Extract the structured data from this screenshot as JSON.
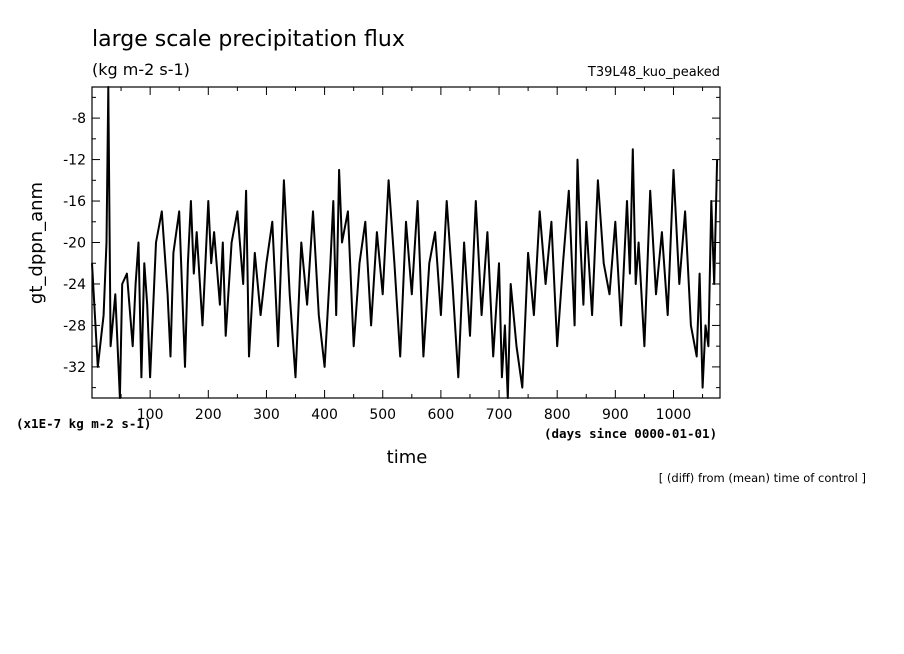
{
  "chart_data": {
    "type": "line",
    "title": "large scale precipitation flux",
    "units": "(kg m-2 s-1)",
    "experiment": "T39L48_kuo_peaked",
    "xlabel": "time",
    "xunits": "(days since 0000-01-01)",
    "ylabel": "gt_dppn_anm",
    "yunits": "(x1E-7 kg m-2 s-1)",
    "note": "[ (diff) from (mean) time of control ]",
    "xlim": [
      0,
      1080
    ],
    "ylim": [
      -35,
      -5
    ],
    "xticks": [
      100,
      200,
      300,
      400,
      500,
      600,
      700,
      800,
      900,
      1000
    ],
    "xtick_labels": [
      "100",
      "200",
      "300",
      "400",
      "500",
      "600",
      "700",
      "800",
      "900",
      "1000"
    ],
    "yticks": [
      -32,
      -28,
      -24,
      -20,
      -16,
      -12,
      -8
    ],
    "ytick_labels": [
      "-32",
      "-28",
      "-24",
      "-20",
      "-16",
      "-12",
      "-8"
    ],
    "grid": false,
    "legend": "none",
    "color": "#000000",
    "series": [
      {
        "x": [
          0,
          10,
          20,
          25,
          28,
          32,
          40,
          48,
          52,
          60,
          70,
          75,
          80,
          85,
          90,
          95,
          100,
          110,
          120,
          130,
          135,
          140,
          150,
          160,
          165,
          170,
          175,
          180,
          190,
          200,
          205,
          210,
          220,
          225,
          230,
          240,
          250,
          260,
          265,
          270,
          280,
          290,
          300,
          310,
          320,
          330,
          340,
          350,
          360,
          370,
          380,
          390,
          400,
          410,
          415,
          420,
          425,
          430,
          440,
          450,
          460,
          470,
          480,
          490,
          500,
          510,
          520,
          530,
          540,
          550,
          560,
          570,
          580,
          590,
          600,
          610,
          620,
          630,
          640,
          650,
          660,
          670,
          680,
          690,
          700,
          705,
          710,
          715,
          720,
          730,
          740,
          750,
          760,
          770,
          780,
          790,
          800,
          810,
          820,
          830,
          835,
          840,
          845,
          850,
          860,
          870,
          880,
          890,
          900,
          910,
          920,
          925,
          930,
          935,
          940,
          950,
          960,
          970,
          980,
          990,
          1000,
          1010,
          1020,
          1030,
          1040,
          1045,
          1050,
          1055,
          1060,
          1065,
          1070,
          1075
        ],
        "y": [
          -22,
          -32,
          -27,
          -20,
          -5,
          -30,
          -25,
          -35,
          -24,
          -23,
          -30,
          -24,
          -20,
          -33,
          -22,
          -26,
          -33,
          -20,
          -17,
          -25,
          -31,
          -21,
          -17,
          -32,
          -22,
          -16,
          -23,
          -19,
          -28,
          -16,
          -22,
          -19,
          -26,
          -20,
          -29,
          -20,
          -17,
          -24,
          -15,
          -31,
          -21,
          -27,
          -22,
          -18,
          -30,
          -14,
          -25,
          -33,
          -20,
          -26,
          -17,
          -27,
          -32,
          -22,
          -16,
          -27,
          -13,
          -20,
          -17,
          -30,
          -22,
          -18,
          -28,
          -19,
          -25,
          -14,
          -22,
          -31,
          -18,
          -25,
          -16,
          -31,
          -22,
          -19,
          -27,
          -16,
          -24,
          -33,
          -20,
          -29,
          -16,
          -27,
          -19,
          -31,
          -22,
          -33,
          -28,
          -35,
          -24,
          -30,
          -34,
          -21,
          -27,
          -17,
          -24,
          -18,
          -30,
          -22,
          -15,
          -28,
          -12,
          -20,
          -26,
          -18,
          -27,
          -14,
          -22,
          -25,
          -18,
          -28,
          -16,
          -23,
          -11,
          -24,
          -20,
          -30,
          -15,
          -25,
          -19,
          -27,
          -13,
          -24,
          -17,
          -28,
          -31,
          -23,
          -34,
          -28,
          -30,
          -16,
          -24,
          -12
        ]
      }
    ]
  }
}
